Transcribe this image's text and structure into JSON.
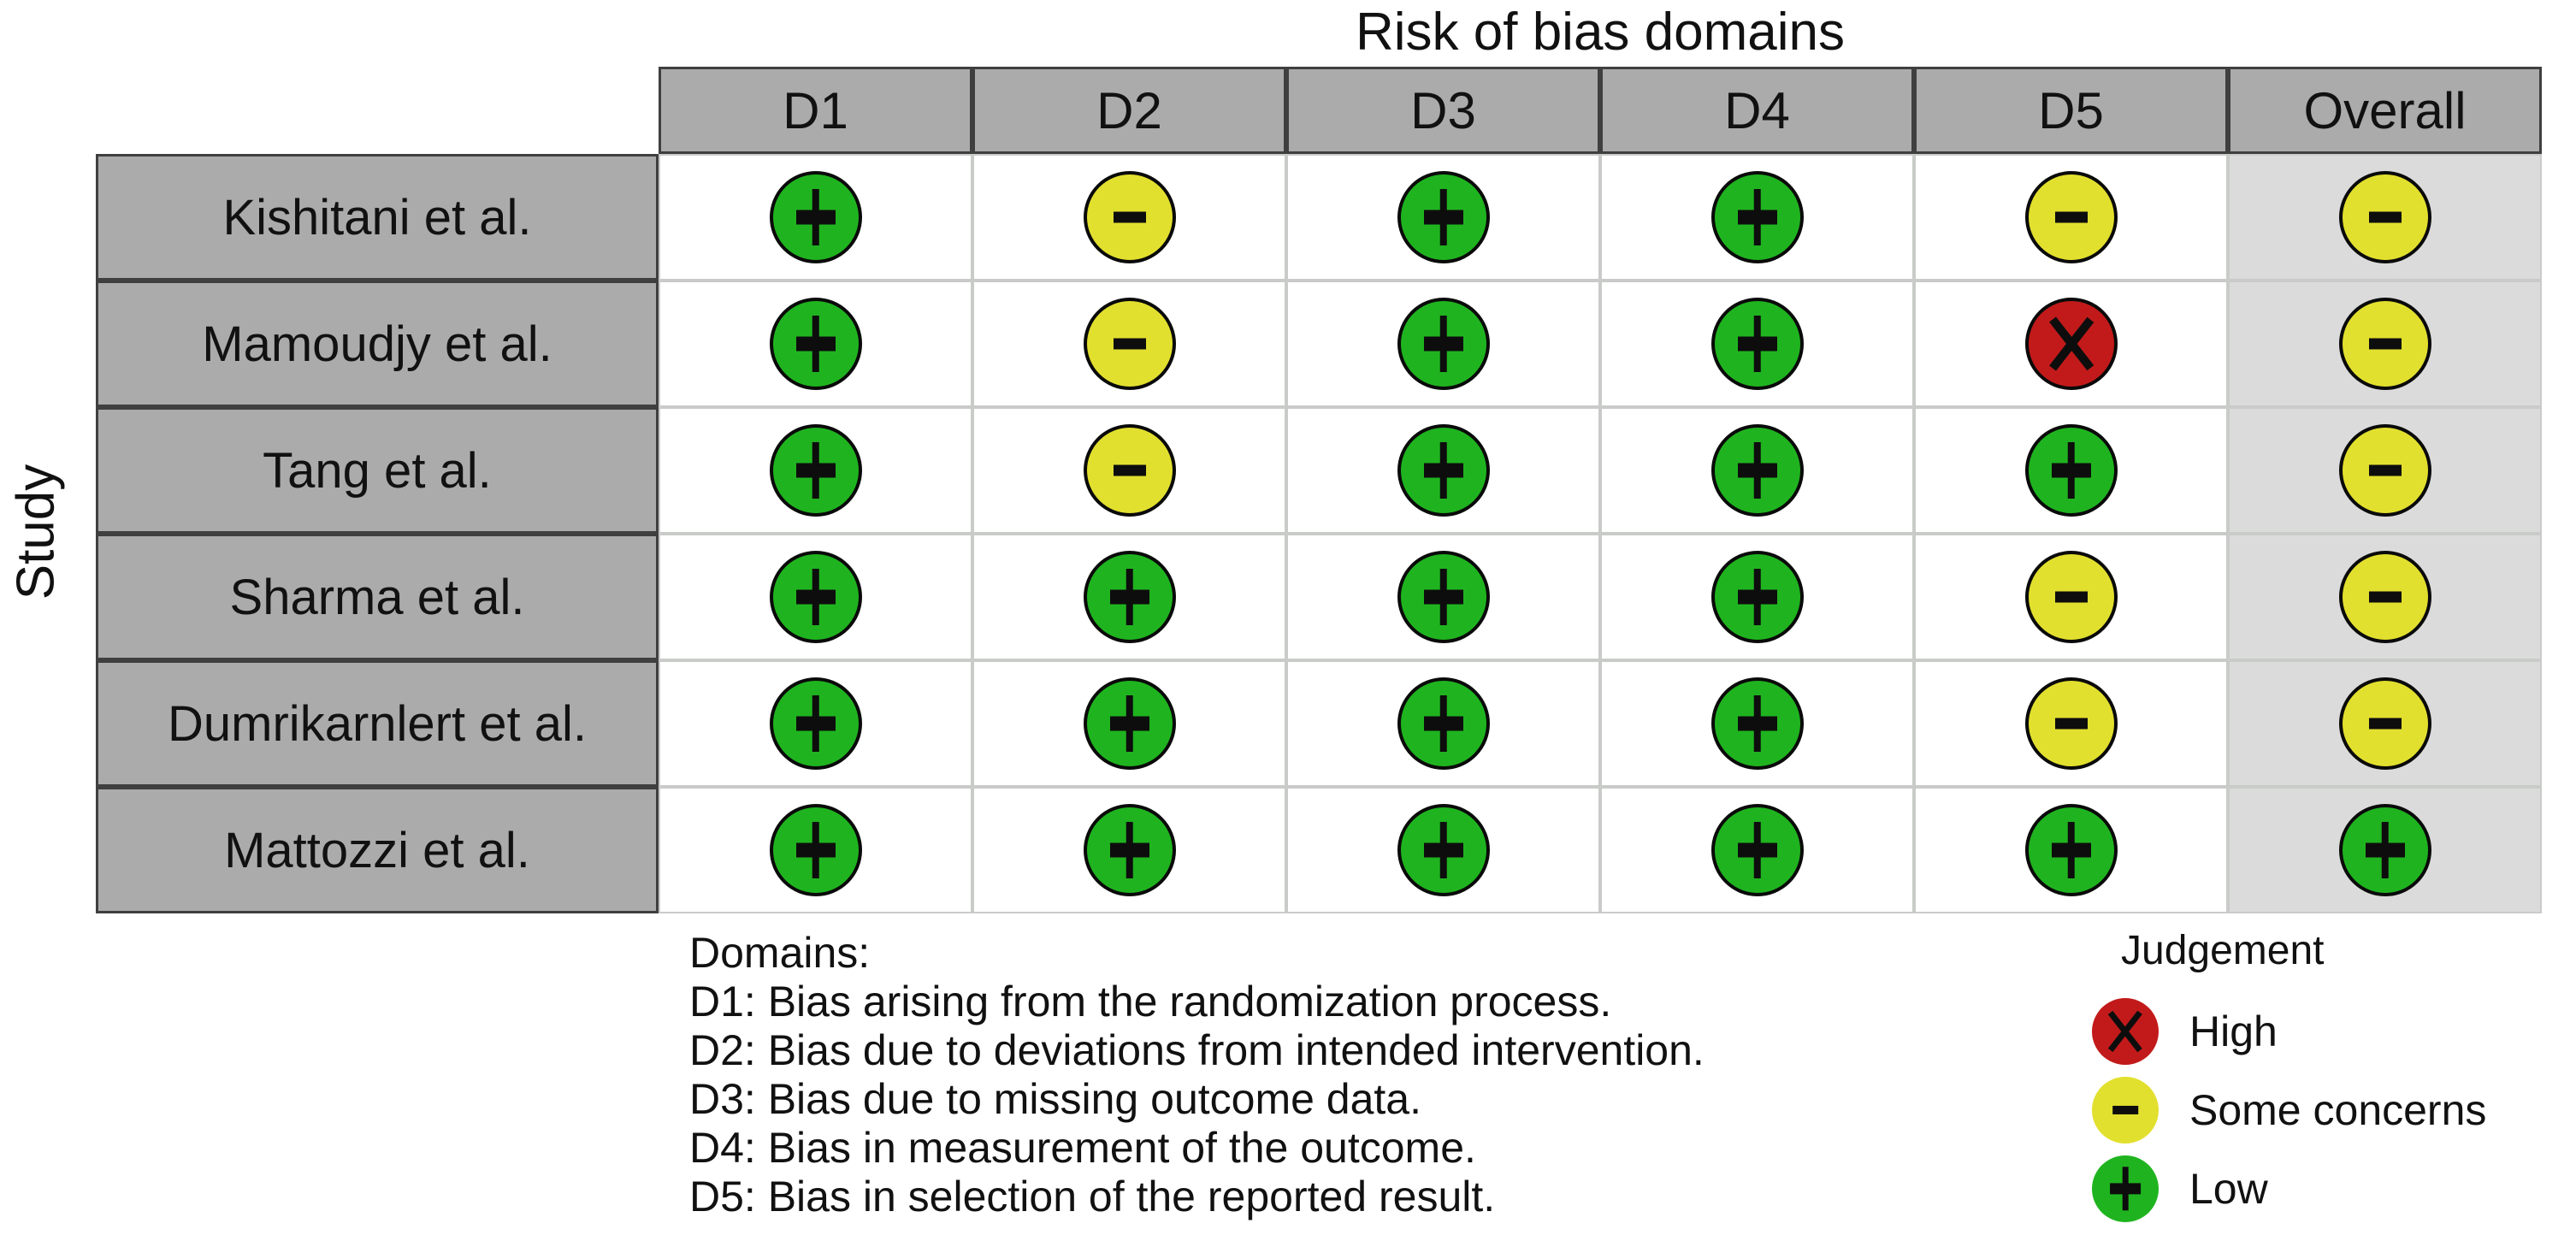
{
  "figure": {
    "title": "Risk of bias domains",
    "y_axis_label": "Study"
  },
  "table": {
    "columns": [
      "D1",
      "D2",
      "D3",
      "D4",
      "D5",
      "Overall"
    ],
    "rows": [
      {
        "study": "Kishitani et al.",
        "judgements": [
          "low",
          "some_concerns",
          "low",
          "low",
          "some_concerns",
          "some_concerns"
        ]
      },
      {
        "study": "Mamoudjy et al.",
        "judgements": [
          "low",
          "some_concerns",
          "low",
          "low",
          "high",
          "some_concerns"
        ]
      },
      {
        "study": "Tang et al.",
        "judgements": [
          "low",
          "some_concerns",
          "low",
          "low",
          "low",
          "some_concerns"
        ]
      },
      {
        "study": "Sharma et al.",
        "judgements": [
          "low",
          "low",
          "low",
          "low",
          "some_concerns",
          "some_concerns"
        ]
      },
      {
        "study": "Dumrikarnlert et al.",
        "judgements": [
          "low",
          "low",
          "low",
          "low",
          "some_concerns",
          "some_concerns"
        ]
      },
      {
        "study": "Mattozzi et al.",
        "judgements": [
          "low",
          "low",
          "low",
          "low",
          "low",
          "low"
        ]
      }
    ]
  },
  "judgement_symbols": {
    "low": "plus",
    "some_concerns": "minus",
    "high": "x"
  },
  "colors": {
    "low": "#1fb41f",
    "some_concerns": "#e2e02e",
    "high": "#c21a1a",
    "header_bg": "#ababab",
    "overall_bg": "#dbdbdb"
  },
  "domains_note": {
    "heading": "Domains:",
    "lines": [
      "D1: Bias arising from the randomization process.",
      "D2: Bias due to deviations from intended intervention.",
      "D3: Bias due to missing outcome data.",
      "D4: Bias in measurement of the outcome.",
      "D5: Bias in selection of the reported result."
    ]
  },
  "legend": {
    "title": "Judgement",
    "items": [
      {
        "judgement": "high",
        "label": "High"
      },
      {
        "judgement": "some_concerns",
        "label": "Some concerns"
      },
      {
        "judgement": "low",
        "label": "Low"
      }
    ]
  },
  "chart_data": {
    "type": "table",
    "title": "Risk of bias domains",
    "x_categories": [
      "D1",
      "D2",
      "D3",
      "D4",
      "D5",
      "Overall"
    ],
    "y_categories": [
      "Kishitani et al.",
      "Mamoudjy et al.",
      "Tang et al.",
      "Sharma et al.",
      "Dumrikarnlert et al.",
      "Mattozzi et al."
    ],
    "y_axis_label": "Study",
    "values": [
      [
        "low",
        "some_concerns",
        "low",
        "low",
        "some_concerns",
        "some_concerns"
      ],
      [
        "low",
        "some_concerns",
        "low",
        "low",
        "high",
        "some_concerns"
      ],
      [
        "low",
        "some_concerns",
        "low",
        "low",
        "low",
        "some_concerns"
      ],
      [
        "low",
        "low",
        "low",
        "low",
        "some_concerns",
        "some_concerns"
      ],
      [
        "low",
        "low",
        "low",
        "low",
        "some_concerns",
        "some_concerns"
      ],
      [
        "low",
        "low",
        "low",
        "low",
        "low",
        "low"
      ]
    ],
    "legend_entries": [
      "High",
      "Some concerns",
      "Low"
    ],
    "legend_position": "bottom-right",
    "grid": true
  }
}
